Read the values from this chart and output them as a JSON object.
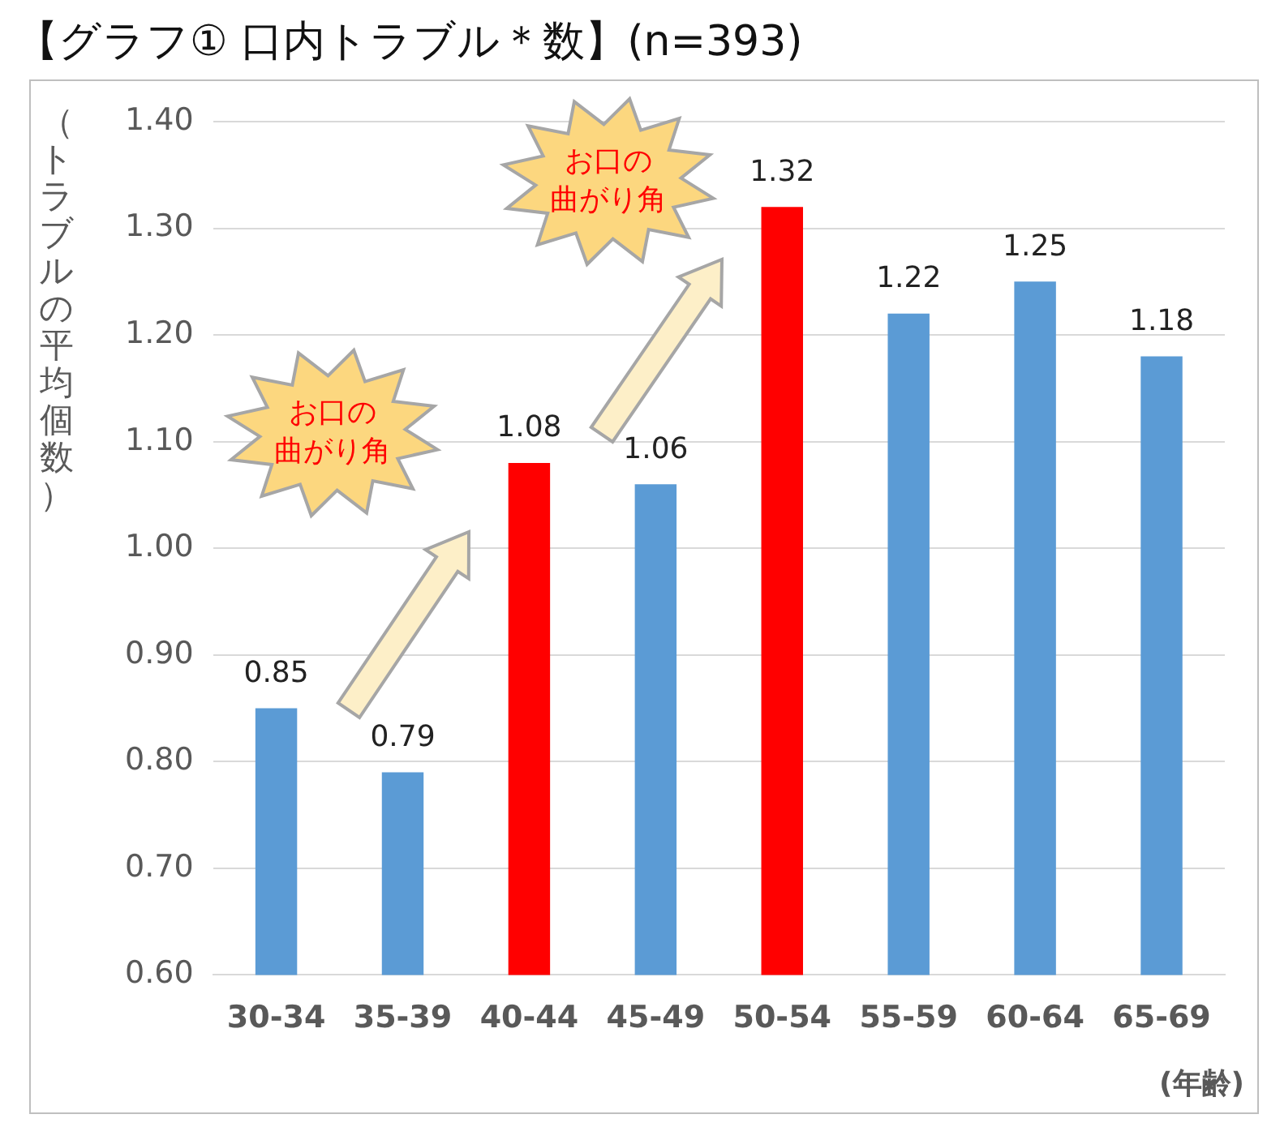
{
  "chart_data": {
    "type": "bar",
    "title": "【グラフ① 口内トラブル＊数】(n=393)",
    "ylabel": "（トラブルの平均個数）",
    "xlabel": "(年齢)",
    "categories": [
      "30-34",
      "35-39",
      "40-44",
      "45-49",
      "50-54",
      "55-59",
      "60-64",
      "65-69"
    ],
    "values": [
      0.85,
      0.79,
      1.08,
      1.06,
      1.32,
      1.22,
      1.25,
      1.18
    ],
    "colors": [
      "#5b9bd5",
      "#5b9bd5",
      "#ff0000",
      "#5b9bd5",
      "#ff0000",
      "#5b9bd5",
      "#5b9bd5",
      "#5b9bd5"
    ],
    "ylim": [
      0.6,
      1.4
    ],
    "yticks": [
      {
        "value": 0.6,
        "label": "0.60"
      },
      {
        "value": 0.7,
        "label": "0.70"
      },
      {
        "value": 0.8,
        "label": "0.80"
      },
      {
        "value": 0.9,
        "label": "0.90"
      },
      {
        "value": 1.0,
        "label": "1.00"
      },
      {
        "value": 1.1,
        "label": "1.10"
      },
      {
        "value": 1.2,
        "label": "1.20"
      },
      {
        "value": 1.3,
        "label": "1.30"
      },
      {
        "value": 1.4,
        "label": "1.40"
      }
    ],
    "grid": "y",
    "legend": false,
    "data_labels": true,
    "annotations": [
      "お口の曲がり角",
      "お口の曲がり角"
    ]
  }
}
